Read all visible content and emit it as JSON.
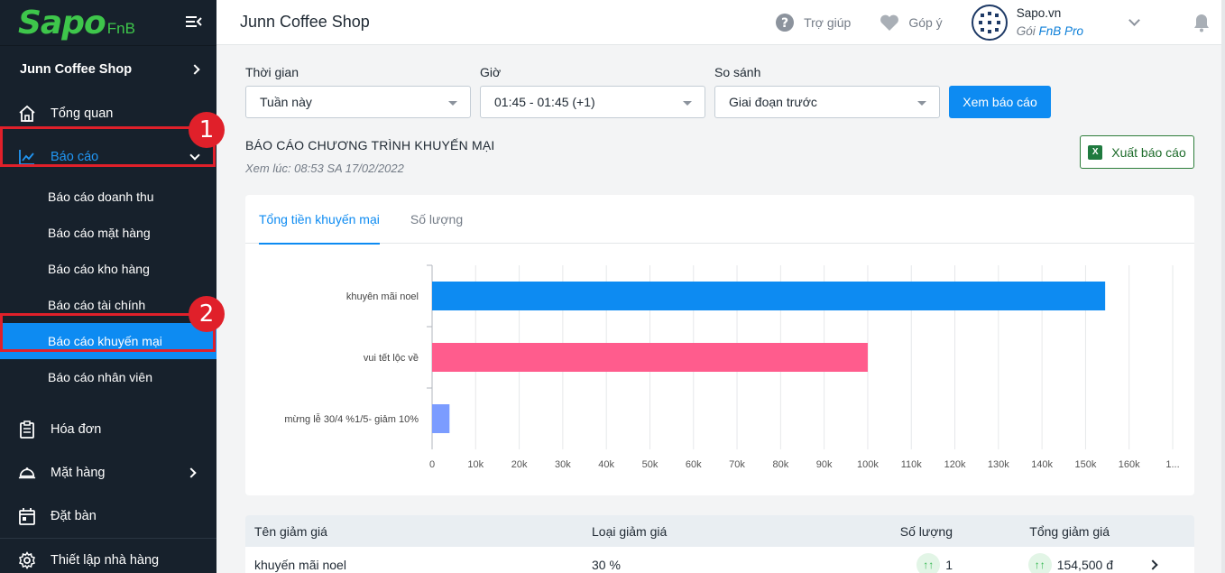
{
  "sidebar": {
    "logo": "Sapo",
    "logo_sub": "FnB",
    "shop_name": "Junn Coffee Shop",
    "items": [
      {
        "label": "Tổng quan"
      },
      {
        "label": "Báo cáo"
      },
      {
        "label": "Hóa đơn"
      },
      {
        "label": "Mặt hàng"
      },
      {
        "label": "Đặt bàn"
      },
      {
        "label": "Thiết lập nhà hàng"
      }
    ],
    "sub_items": [
      {
        "label": "Báo cáo doanh thu"
      },
      {
        "label": "Báo cáo mặt hàng"
      },
      {
        "label": "Báo cáo kho hàng"
      },
      {
        "label": "Báo cáo tài chính"
      },
      {
        "label": "Báo cáo khuyến mại"
      },
      {
        "label": "Báo cáo nhân viên"
      }
    ],
    "annotations": [
      "1",
      "2"
    ]
  },
  "topbar": {
    "title": "Junn Coffee Shop",
    "help": "Trợ giúp",
    "feedback": "Góp ý",
    "account_name": "Sapo.vn",
    "plan_prefix": "Gói",
    "plan_name": "FnB Pro"
  },
  "filters": {
    "time_label": "Thời gian",
    "time_value": "Tuần này",
    "hour_label": "Giờ",
    "hour_value": "01:45 - 01:45 (+1)",
    "compare_label": "So sánh",
    "compare_value": "Giai đoạn trước",
    "submit": "Xem báo cáo"
  },
  "report": {
    "title": "BÁO CÁO CHƯƠNG TRÌNH KHUYẾN MẠI",
    "viewed_at": "Xem lúc: 08:53 SA 17/02/2022",
    "export": "Xuất báo cáo",
    "tabs": [
      "Tổng tiền khuyến mại",
      "Số lượng"
    ]
  },
  "chart_data": {
    "type": "bar",
    "orientation": "horizontal",
    "categories": [
      "khuyên mãi noel",
      "vui tết lộc về",
      "mừng lễ 30/4 %1/5- giảm 10%"
    ],
    "values": [
      154500,
      100000,
      4000
    ],
    "colors": [
      "#0d8bf2",
      "#ff5c8d",
      "#7b9cff"
    ],
    "xticks": [
      "0",
      "10k",
      "20k",
      "30k",
      "40k",
      "50k",
      "60k",
      "70k",
      "80k",
      "90k",
      "100k",
      "110k",
      "120k",
      "130k",
      "140k",
      "150k",
      "160k",
      "1..."
    ],
    "xlim": [
      0,
      170000
    ],
    "grid": true
  },
  "table": {
    "headers": [
      "Tên giảm giá",
      "Loại giảm giá",
      "Số lượng",
      "Tổng giảm giá"
    ],
    "rows": [
      {
        "name": "khuyến mãi noel",
        "type": "30 %",
        "qty": "1",
        "total": "154,500 đ"
      }
    ]
  }
}
